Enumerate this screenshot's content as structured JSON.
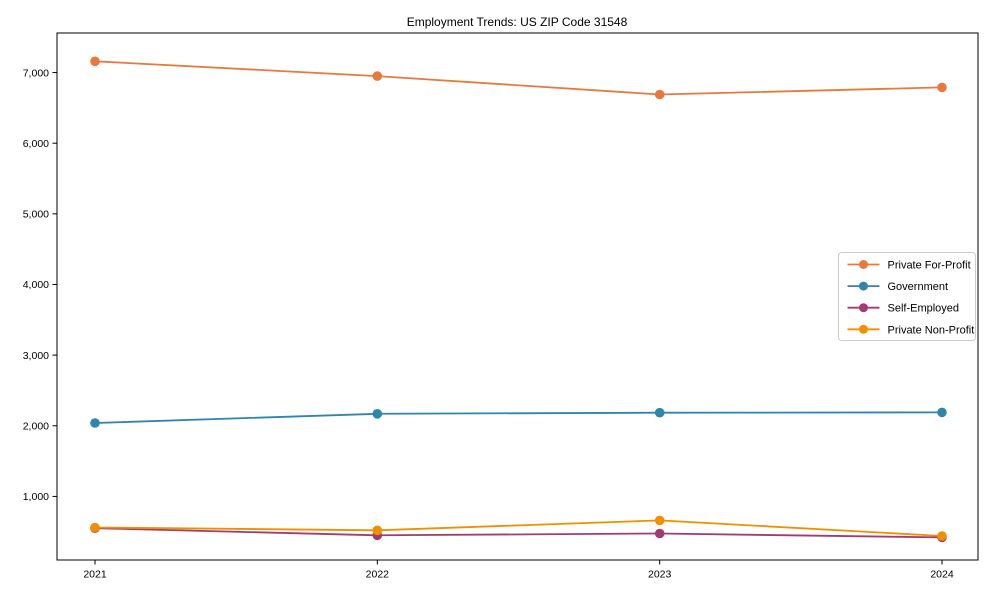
{
  "chart_data": {
    "type": "line",
    "title": "Employment Trends: US ZIP Code 31548",
    "categories": [
      "2021",
      "2022",
      "2023",
      "2024"
    ],
    "series": [
      {
        "name": "Private For-Profit",
        "color": "#E8793D",
        "values": [
          7160,
          6950,
          6690,
          6790
        ]
      },
      {
        "name": "Government",
        "color": "#2E86AB",
        "values": [
          2040,
          2170,
          2185,
          2190
        ]
      },
      {
        "name": "Self-Employed",
        "color": "#A23B72",
        "values": [
          550,
          450,
          475,
          420
        ]
      },
      {
        "name": "Private Non-Profit",
        "color": "#F18F01",
        "values": [
          560,
          520,
          660,
          440
        ]
      }
    ],
    "xlabel": "",
    "ylabel": "",
    "ylim": [
      100,
      7560
    ],
    "yticks": [
      1000,
      2000,
      3000,
      4000,
      5000,
      6000,
      7000
    ],
    "ytick_labels": [
      "1,000",
      "2,000",
      "3,000",
      "4,000",
      "5,000",
      "6,000",
      "7,000"
    ],
    "grid": false,
    "marker": "circle",
    "legend_position": "center right",
    "axis_color": "#000000",
    "text_color": "#000000",
    "legend_border_color": "#cccccc",
    "background_color": "#ffffff"
  }
}
